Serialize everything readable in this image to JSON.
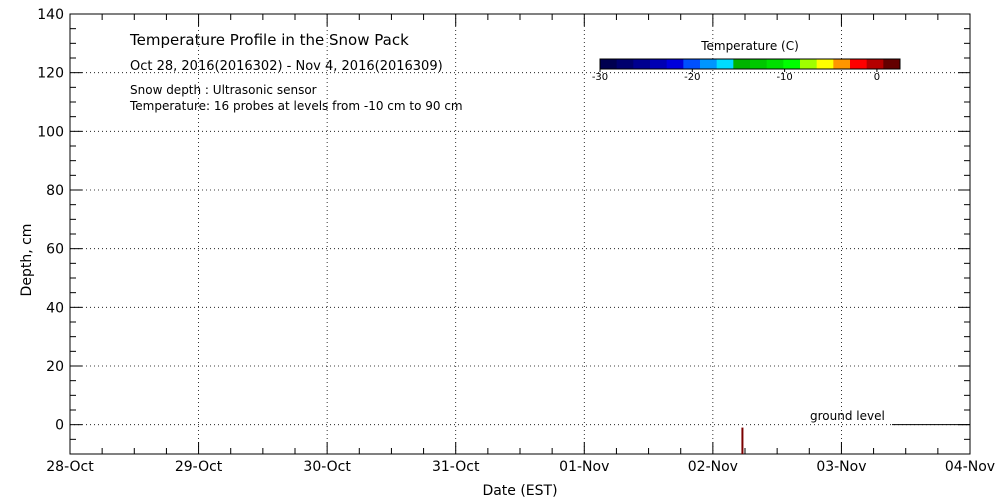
{
  "chart_data": {
    "type": "heatmap",
    "title": "Temperature Profile in the Snow Pack",
    "date_range": "Oct 28, 2016(2016302) - Nov  4, 2016(2016309)",
    "notes": [
      "Snow depth : Ultrasonic sensor",
      "Temperature: 16 probes at levels from -10 cm to 90 cm"
    ],
    "xlabel": "Date (EST)",
    "ylabel": "Depth, cm",
    "x_ticks": [
      "28-Oct",
      "29-Oct",
      "30-Oct",
      "31-Oct",
      "01-Nov",
      "02-Nov",
      "03-Nov",
      "04-Nov"
    ],
    "xlim_days": [
      0,
      7
    ],
    "ylim": [
      -10,
      140
    ],
    "y_ticks": [
      0,
      20,
      40,
      60,
      80,
      100,
      120,
      140
    ],
    "grid": true,
    "colorbar": {
      "title": "Temperature (C)",
      "range": [
        -30,
        2.5
      ],
      "ticks": [
        -30,
        -20,
        -10,
        0
      ],
      "colors": [
        "#000050",
        "#00006e",
        "#000090",
        "#0000b4",
        "#0000dc",
        "#0050ff",
        "#0096ff",
        "#00dcff",
        "#00b400",
        "#00c800",
        "#00e000",
        "#00ff00",
        "#a0ff00",
        "#ffff00",
        "#ff9600",
        "#ff0000",
        "#b40000",
        "#640000"
      ]
    },
    "annotations": [
      {
        "text": "ground level",
        "y": 0
      }
    ],
    "data_marks": [
      {
        "x_day": 5.23,
        "y_from": -10,
        "y_to": -1,
        "color": "#7a0000"
      }
    ]
  }
}
